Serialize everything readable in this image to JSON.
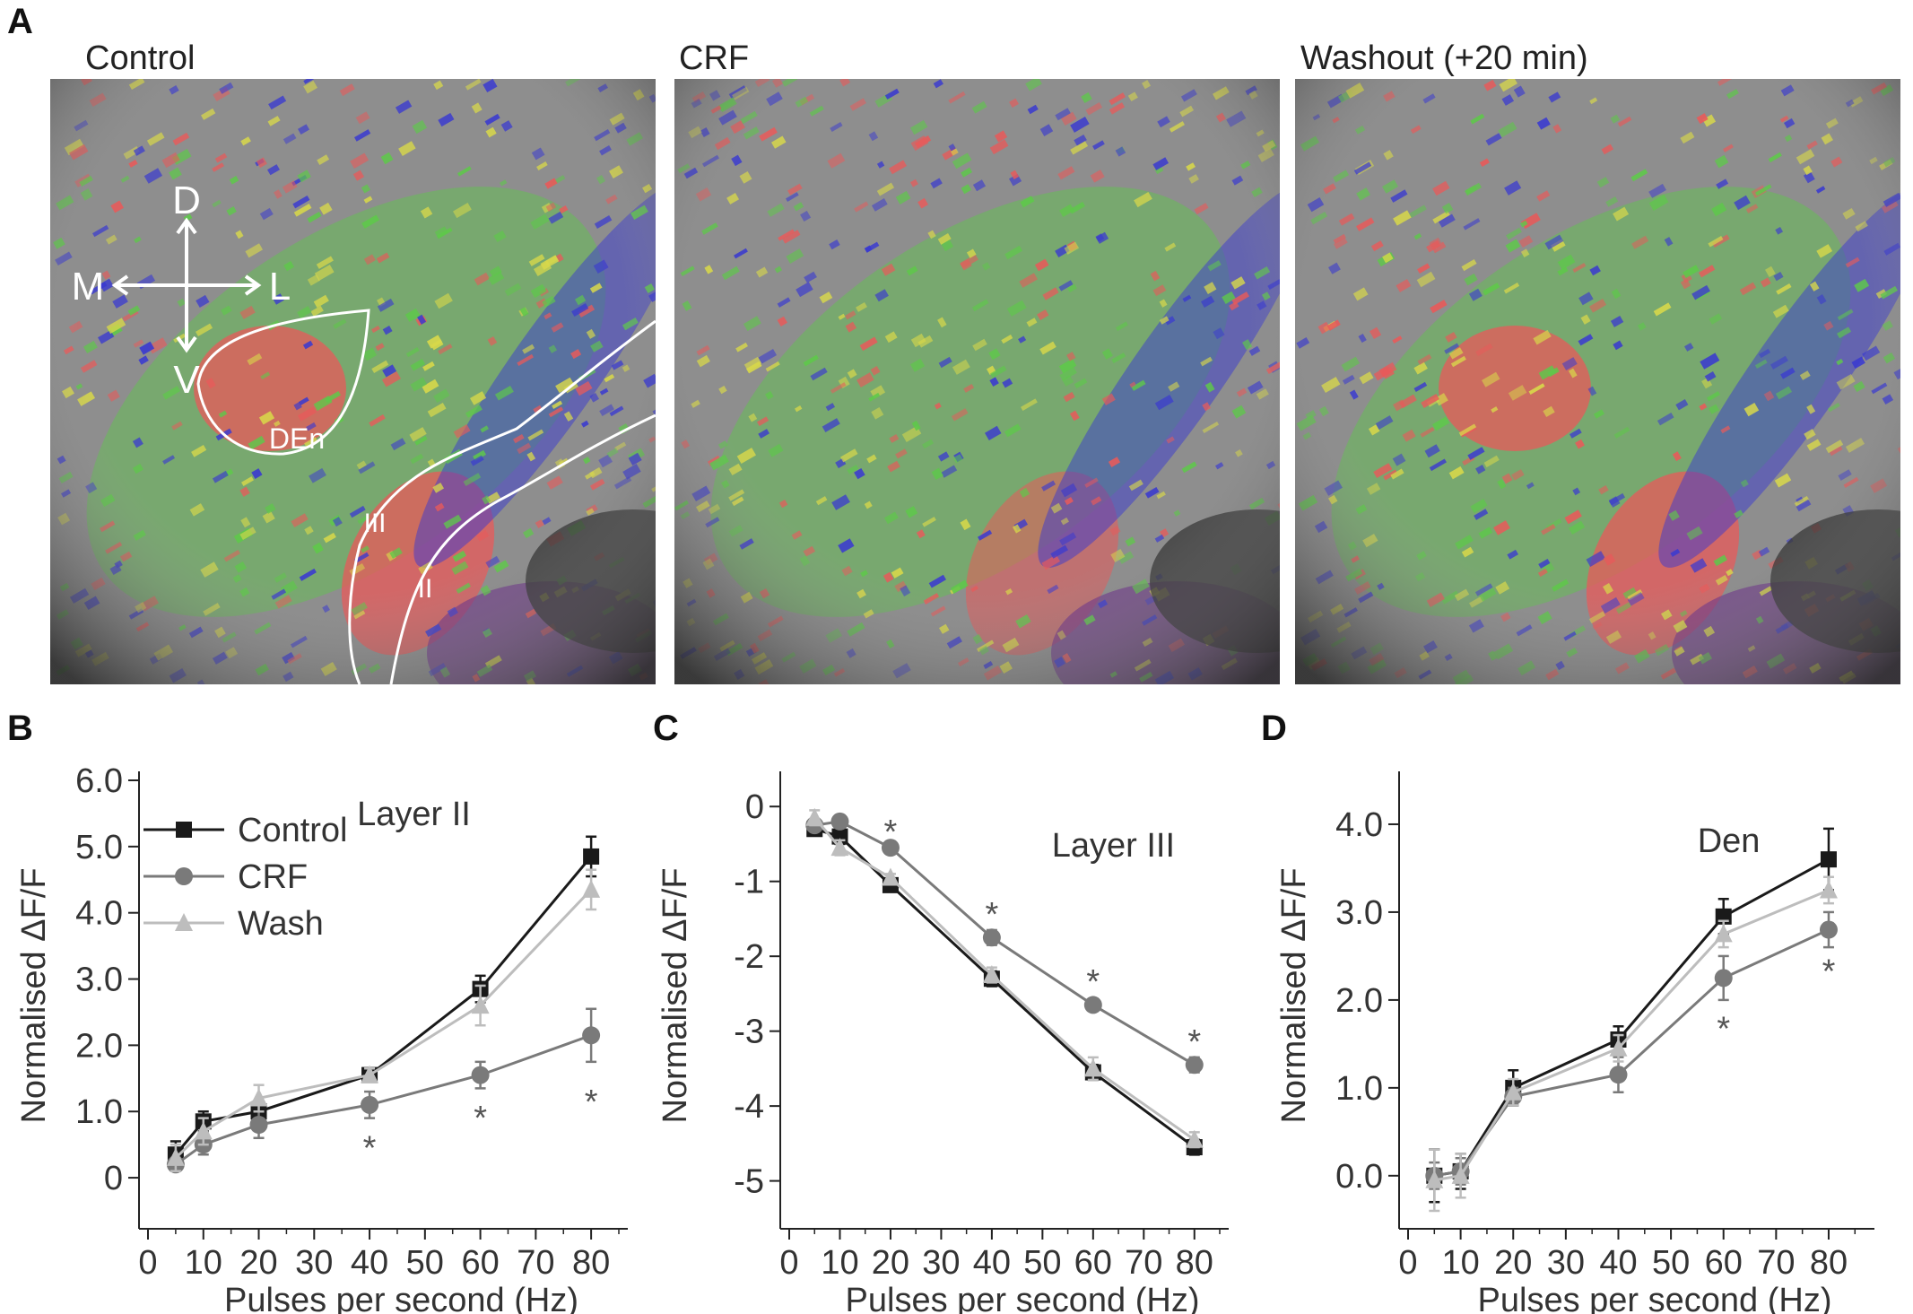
{
  "panel_labels": {
    "a": "A",
    "b": "B",
    "c": "C",
    "d": "D"
  },
  "images": [
    {
      "title": "Control",
      "overlay": {
        "axis": {
          "d": "D",
          "v": "V",
          "m": "M",
          "l": "L"
        },
        "regions": {
          "den": "DEn",
          "iii": "III",
          "ii": "II"
        }
      }
    },
    {
      "title": "CRF"
    },
    {
      "title": "Washout (+20 min)"
    }
  ],
  "colors": {
    "control": "#1a1a1a",
    "crf": "#7a7a7a",
    "wash": "#bdbdbd",
    "overlay_red": "#e85a5a",
    "overlay_green": "#5ec84a",
    "overlay_blue": "#3a3ad0",
    "overlay_yellow": "#d8d84a"
  },
  "chart_data": [
    {
      "type": "line",
      "panel": "B",
      "annotation": "Layer II",
      "xlabel": "Pulses per second (Hz)",
      "ylabel": "Normalised ΔF/F",
      "xlim": [
        0,
        85
      ],
      "ylim": [
        -0.5,
        6.0
      ],
      "xticks": [
        0,
        10,
        20,
        30,
        40,
        50,
        60,
        70,
        80
      ],
      "yticks": [
        0,
        1.0,
        2.0,
        3.0,
        4.0,
        5.0,
        6.0
      ],
      "ytick_labels": [
        "0",
        "1.0",
        "2.0",
        "3.0",
        "4.0",
        "5.0",
        "6.0"
      ],
      "x": [
        5,
        10,
        20,
        40,
        60,
        80
      ],
      "series": [
        {
          "name": "Control",
          "marker": "square",
          "values": [
            0.35,
            0.85,
            1.0,
            1.55,
            2.85,
            4.85
          ],
          "errors": [
            0.2,
            0.15,
            0.1,
            0.1,
            0.2,
            0.3
          ]
        },
        {
          "name": "CRF",
          "marker": "circle",
          "values": [
            0.2,
            0.5,
            0.8,
            1.1,
            1.55,
            2.15
          ],
          "errors": [
            0.1,
            0.15,
            0.2,
            0.2,
            0.2,
            0.4
          ]
        },
        {
          "name": "Wash",
          "marker": "triangle",
          "values": [
            0.3,
            0.7,
            1.2,
            1.55,
            2.6,
            4.35
          ],
          "errors": [
            0.2,
            0.2,
            0.2,
            0.1,
            0.3,
            0.3
          ]
        }
      ],
      "significance": [
        {
          "x": 40,
          "y": 0.55,
          "text": "*"
        },
        {
          "x": 60,
          "y": 1.0,
          "text": "*"
        },
        {
          "x": 80,
          "y": 1.25,
          "text": "*"
        }
      ],
      "legend_position": "top-left"
    },
    {
      "type": "line",
      "panel": "C",
      "annotation": "Layer III",
      "xlabel": "Pulses per second (Hz)",
      "ylabel": "Normalised ΔF/F",
      "xlim": [
        0,
        85
      ],
      "ylim": [
        -5.4,
        0.35
      ],
      "xticks": [
        0,
        10,
        20,
        30,
        40,
        50,
        60,
        70,
        80
      ],
      "yticks": [
        0,
        -1,
        -2,
        -3,
        -4,
        -5
      ],
      "ytick_labels": [
        "0",
        "-1",
        "-2",
        "-3",
        "-4",
        "-5"
      ],
      "x": [
        5,
        10,
        20,
        40,
        60,
        80
      ],
      "series": [
        {
          "name": "Control",
          "marker": "square",
          "values": [
            -0.3,
            -0.4,
            -1.05,
            -2.3,
            -3.55,
            -4.55
          ],
          "errors": [
            0.05,
            0.1,
            0.05,
            0.1,
            0.1,
            0.1
          ]
        },
        {
          "name": "CRF",
          "marker": "circle",
          "values": [
            -0.25,
            -0.2,
            -0.55,
            -1.75,
            -2.65,
            -3.45
          ],
          "errors": [
            0.05,
            0.05,
            0.05,
            0.1,
            0.05,
            0.1
          ]
        },
        {
          "name": "Wash",
          "marker": "triangle",
          "values": [
            -0.15,
            -0.55,
            -0.95,
            -2.25,
            -3.5,
            -4.45
          ],
          "errors": [
            0.1,
            0.1,
            0.05,
            0.1,
            0.15,
            0.1
          ]
        }
      ],
      "significance": [
        {
          "x": 20,
          "y": -0.25,
          "text": "*"
        },
        {
          "x": 40,
          "y": -1.35,
          "text": "*"
        },
        {
          "x": 60,
          "y": -2.25,
          "text": "*"
        },
        {
          "x": 80,
          "y": -3.05,
          "text": "*"
        }
      ]
    },
    {
      "type": "line",
      "panel": "D",
      "annotation": "Den",
      "xlabel": "Pulses per second (Hz)",
      "ylabel": "Normalised ΔF/F",
      "xlim": [
        0,
        87
      ],
      "ylim": [
        -0.4,
        4.5
      ],
      "xticks": [
        0,
        10,
        20,
        30,
        40,
        50,
        60,
        70,
        80
      ],
      "yticks": [
        0.0,
        1.0,
        2.0,
        3.0,
        4.0
      ],
      "ytick_labels": [
        "0.0",
        "1.0",
        "2.0",
        "3.0",
        "4.0"
      ],
      "x": [
        5,
        10,
        20,
        40,
        60,
        80
      ],
      "series": [
        {
          "name": "Control",
          "marker": "square",
          "values": [
            0.0,
            0.05,
            1.0,
            1.55,
            2.95,
            3.6
          ],
          "errors": [
            0.3,
            0.2,
            0.2,
            0.15,
            0.2,
            0.35
          ]
        },
        {
          "name": "CRF",
          "marker": "circle",
          "values": [
            0.0,
            0.05,
            0.9,
            1.15,
            2.25,
            2.8
          ],
          "errors": [
            0.15,
            0.15,
            0.1,
            0.2,
            0.25,
            0.2
          ]
        },
        {
          "name": "Wash",
          "marker": "triangle",
          "values": [
            -0.05,
            0.0,
            0.95,
            1.45,
            2.75,
            3.25
          ],
          "errors": [
            0.35,
            0.25,
            0.15,
            0.15,
            0.15,
            0.15
          ]
        }
      ],
      "significance": [
        {
          "x": 60,
          "y": 1.75,
          "text": "*"
        },
        {
          "x": 80,
          "y": 2.4,
          "text": "*"
        }
      ]
    }
  ]
}
